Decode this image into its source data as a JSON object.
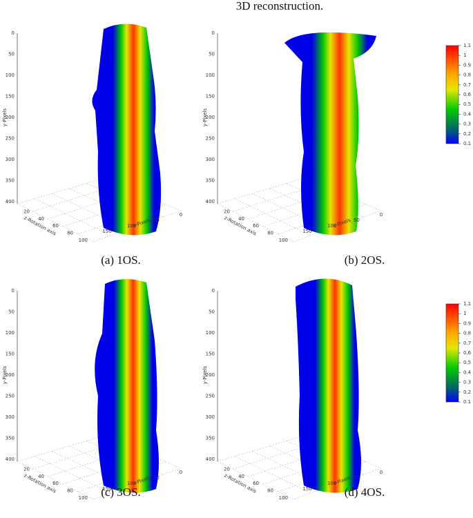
{
  "header": {
    "title": "3D reconstruction."
  },
  "axes": {
    "y_label": "y-Pixels",
    "z_label": "z-Rotation axis",
    "x_label": "x-Pixels",
    "y_ticks": [
      0,
      50,
      100,
      150,
      200,
      250,
      300,
      350,
      400
    ],
    "z_ticks": [
      20,
      40,
      60,
      80,
      100
    ],
    "x_ticks": [
      150,
      100,
      50,
      0
    ]
  },
  "colorbar": {
    "ticks": [
      1.1,
      1,
      0.9,
      0.8,
      0.7,
      0.6,
      0.5,
      0.4,
      0.3,
      0.2,
      0.1
    ]
  },
  "panels": [
    {
      "caption": "(a) 1OS."
    },
    {
      "caption": "(b) 2OS."
    },
    {
      "caption": "(c) 3OS."
    },
    {
      "caption": "(d) 4OS."
    }
  ]
}
